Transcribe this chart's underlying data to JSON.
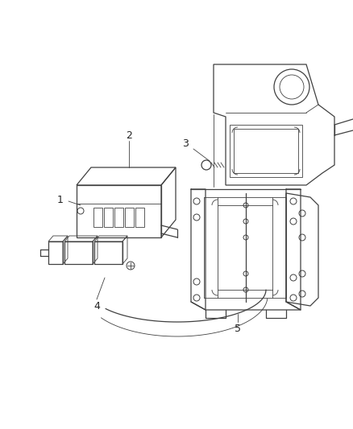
{
  "background_color": "#ffffff",
  "line_color": "#404040",
  "label_color": "#222222",
  "figsize": [
    4.38,
    5.33
  ],
  "dpi": 100,
  "label_fontsize": 9
}
